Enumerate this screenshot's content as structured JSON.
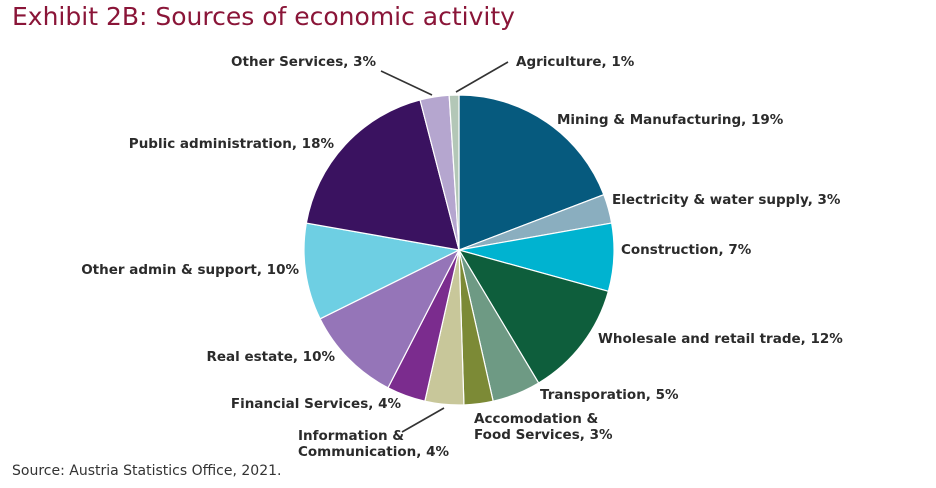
{
  "title": "Exhibit 2B: Sources of economic activity",
  "source": "Source: Austria Statistics Office, 2021.",
  "chart_data": {
    "type": "pie",
    "title": "Exhibit 2B: Sources of economic activity",
    "slices": [
      {
        "label": "Mining & Manufacturing, 19%",
        "value": 19,
        "color": "#065a7e"
      },
      {
        "label": "Electricity & water supply, 3%",
        "value": 3,
        "color": "#8aaebf"
      },
      {
        "label": "Construction, 7%",
        "value": 7,
        "color": "#00b3d0"
      },
      {
        "label": "Wholesale and retail trade, 12%",
        "value": 12,
        "color": "#0e5e3c"
      },
      {
        "label": "Transporation, 5%",
        "value": 5,
        "color": "#6e9a84"
      },
      {
        "label": "Accomodation & Food Services, 3%",
        "value": 3,
        "color": "#7c8a36"
      },
      {
        "label": "Information & Communication, 4%",
        "value": 4,
        "color": "#c8c79a"
      },
      {
        "label": "Financial Services, 4%",
        "value": 4,
        "color": "#7b2c8e"
      },
      {
        "label": "Real estate, 10%",
        "value": 10,
        "color": "#9575b8"
      },
      {
        "label": "Other admin & support, 10%",
        "value": 10,
        "color": "#6ecfe3"
      },
      {
        "label": "Public administration, 18%",
        "value": 18,
        "color": "#3a1260"
      },
      {
        "label": "Other Services, 3%",
        "value": 3,
        "color": "#b5a6cf"
      },
      {
        "label": "Agriculture, 1%",
        "value": 1,
        "color": "#b3c7b7"
      }
    ]
  }
}
